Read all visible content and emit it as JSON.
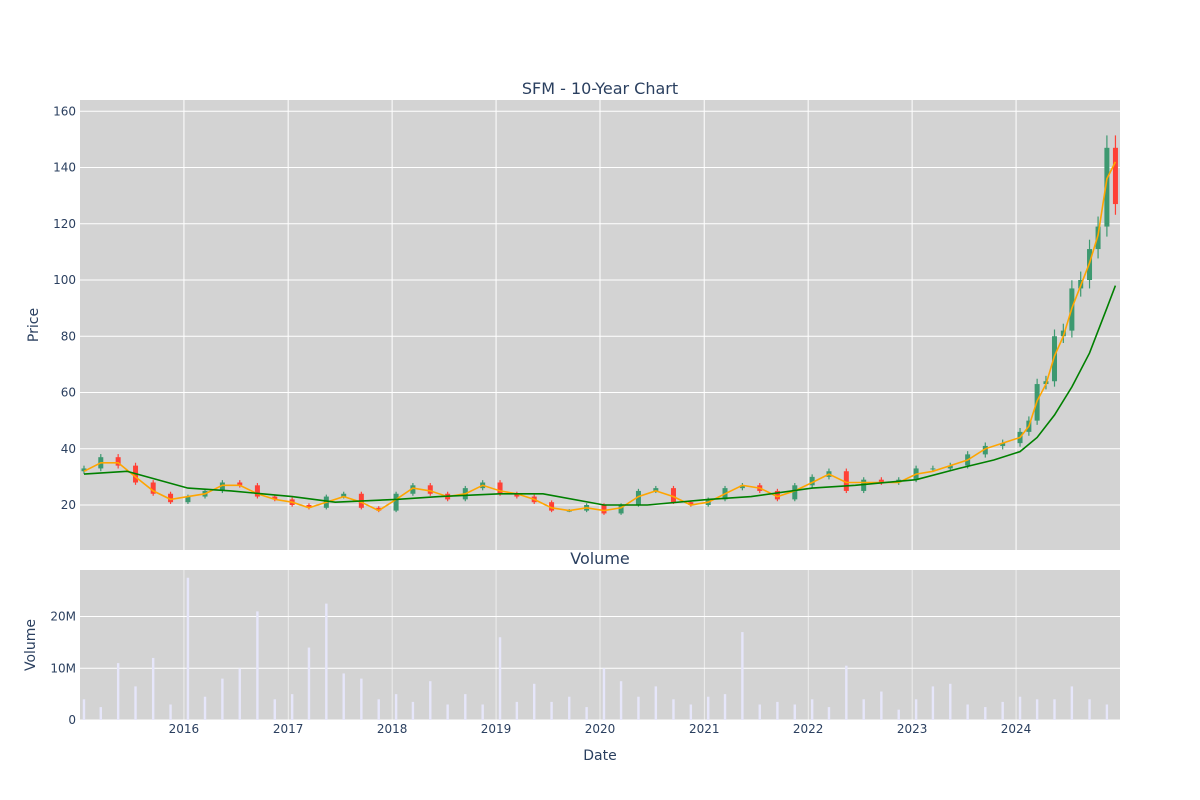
{
  "chart_data": [
    {
      "type": "candlestick",
      "title": "SFM - 10-Year Chart",
      "xlabel": "",
      "ylabel": "Price",
      "xlim": [
        "2015-01-01",
        "2024-12-31"
      ],
      "ylim": [
        4,
        164
      ],
      "y_ticks": [
        20,
        40,
        60,
        80,
        100,
        120,
        140,
        160
      ],
      "x_ticks": [
        "2016-01-01",
        "2017-01-01",
        "2018-01-01",
        "2019-01-01",
        "2020-01-01",
        "2021-01-01",
        "2022-01-01",
        "2023-01-01",
        "2024-01-01"
      ],
      "grid": true,
      "background": "#d3d3d3",
      "colors": {
        "up": "#3d9970",
        "down": "#ff4136",
        "short_ma": "#ffa500",
        "long_ma": "#008000"
      },
      "series": [
        {
          "kind": "ohlc",
          "x": [
            "2015-01",
            "2015-03",
            "2015-05",
            "2015-07",
            "2015-09",
            "2015-11",
            "2016-01",
            "2016-03",
            "2016-05",
            "2016-07",
            "2016-09",
            "2016-11",
            "2017-01",
            "2017-03",
            "2017-05",
            "2017-07",
            "2017-09",
            "2017-11",
            "2018-01",
            "2018-03",
            "2018-05",
            "2018-07",
            "2018-09",
            "2018-11",
            "2019-01",
            "2019-03",
            "2019-05",
            "2019-07",
            "2019-09",
            "2019-11",
            "2020-01",
            "2020-03",
            "2020-05",
            "2020-07",
            "2020-09",
            "2020-11",
            "2021-01",
            "2021-03",
            "2021-05",
            "2021-07",
            "2021-09",
            "2021-11",
            "2022-01",
            "2022-03",
            "2022-05",
            "2022-07",
            "2022-09",
            "2022-11",
            "2023-01",
            "2023-03",
            "2023-05",
            "2023-07",
            "2023-09",
            "2023-11",
            "2024-01",
            "2024-02",
            "2024-03",
            "2024-04",
            "2024-05",
            "2024-06",
            "2024-07",
            "2024-08",
            "2024-09",
            "2024-10",
            "2024-11",
            "2024-12"
          ],
          "close": [
            33,
            37,
            34,
            28,
            24,
            21,
            23,
            25,
            28,
            27,
            23,
            22,
            20,
            19,
            23,
            24,
            19,
            18,
            24,
            27,
            24,
            22,
            26,
            28,
            24,
            23,
            21,
            18,
            18,
            20,
            17,
            20,
            25,
            26,
            21,
            20,
            22,
            26,
            27,
            25,
            22,
            27,
            30,
            32,
            25,
            29,
            28,
            29,
            33,
            33,
            34,
            38,
            41,
            42,
            46,
            50,
            63,
            64,
            80,
            82,
            97,
            100,
            111,
            119,
            147,
            127
          ]
        },
        {
          "kind": "line",
          "x": [
            "2015-01",
            "2015-03",
            "2015-05",
            "2015-07",
            "2015-09",
            "2015-11",
            "2016-01",
            "2016-03",
            "2016-05",
            "2016-07",
            "2016-09",
            "2016-11",
            "2017-01",
            "2017-03",
            "2017-05",
            "2017-07",
            "2017-09",
            "2017-11",
            "2018-01",
            "2018-03",
            "2018-05",
            "2018-07",
            "2018-09",
            "2018-11",
            "2019-01",
            "2019-03",
            "2019-05",
            "2019-07",
            "2019-09",
            "2019-11",
            "2020-01",
            "2020-03",
            "2020-05",
            "2020-07",
            "2020-09",
            "2020-11",
            "2021-01",
            "2021-03",
            "2021-05",
            "2021-07",
            "2021-09",
            "2021-11",
            "2022-01",
            "2022-03",
            "2022-05",
            "2022-07",
            "2022-09",
            "2022-11",
            "2023-01",
            "2023-03",
            "2023-05",
            "2023-07",
            "2023-09",
            "2023-11",
            "2024-01",
            "2024-02",
            "2024-03",
            "2024-04",
            "2024-05",
            "2024-06",
            "2024-07",
            "2024-08",
            "2024-09",
            "2024-10",
            "2024-11",
            "2024-12"
          ],
          "values": [
            32,
            35,
            35,
            30,
            25,
            22,
            23,
            24,
            27,
            27,
            24,
            22,
            21,
            19,
            21,
            23,
            21,
            18,
            22,
            26,
            25,
            23,
            24,
            27,
            25,
            24,
            22,
            19,
            18,
            19,
            18,
            19,
            23,
            25,
            23,
            20,
            21,
            24,
            27,
            26,
            23,
            25,
            28,
            31,
            28,
            28,
            28,
            28,
            31,
            32,
            34,
            36,
            40,
            42,
            44,
            48,
            57,
            63,
            73,
            80,
            90,
            98,
            106,
            116,
            136,
            142
          ],
          "color_key": "short_ma"
        },
        {
          "kind": "line",
          "x": [
            "2015-01",
            "2015-06",
            "2016-01",
            "2016-06",
            "2017-01",
            "2017-06",
            "2018-01",
            "2018-06",
            "2019-01",
            "2019-06",
            "2020-01",
            "2020-06",
            "2021-01",
            "2021-06",
            "2022-01",
            "2022-06",
            "2023-01",
            "2023-06",
            "2023-10",
            "2024-01",
            "2024-03",
            "2024-05",
            "2024-07",
            "2024-09",
            "2024-11",
            "2024-12"
          ],
          "values": [
            31,
            32,
            26,
            25,
            23,
            21,
            22,
            23,
            24,
            24,
            20,
            20,
            22,
            23,
            26,
            27,
            29,
            33,
            36,
            39,
            44,
            52,
            62,
            74,
            90,
            98
          ],
          "color_key": "long_ma"
        }
      ]
    },
    {
      "type": "bar",
      "title": "Volume",
      "xlabel": "Date",
      "ylabel": "Volume",
      "ylim": [
        0,
        29000000
      ],
      "y_ticks": [
        0,
        10000000,
        20000000
      ],
      "y_tick_labels": [
        "0",
        "10M",
        "20M"
      ],
      "x_tick_labels": [
        "2016",
        "2017",
        "2018",
        "2019",
        "2020",
        "2021",
        "2022",
        "2023",
        "2024"
      ],
      "grid": true,
      "background": "#d3d3d3",
      "bar_color": "#e6e6fa",
      "x": [
        "2015-01",
        "2015-03",
        "2015-05",
        "2015-07",
        "2015-09",
        "2015-11",
        "2016-01",
        "2016-03",
        "2016-05",
        "2016-07",
        "2016-09",
        "2016-11",
        "2017-01",
        "2017-03",
        "2017-05",
        "2017-07",
        "2017-09",
        "2017-11",
        "2018-01",
        "2018-03",
        "2018-05",
        "2018-07",
        "2018-09",
        "2018-11",
        "2019-01",
        "2019-03",
        "2019-05",
        "2019-07",
        "2019-09",
        "2019-11",
        "2020-01",
        "2020-03",
        "2020-05",
        "2020-07",
        "2020-09",
        "2020-11",
        "2021-01",
        "2021-03",
        "2021-05",
        "2021-07",
        "2021-09",
        "2021-11",
        "2022-01",
        "2022-03",
        "2022-05",
        "2022-07",
        "2022-09",
        "2022-11",
        "2023-01",
        "2023-03",
        "2023-05",
        "2023-07",
        "2023-09",
        "2023-11",
        "2024-01",
        "2024-03",
        "2024-05",
        "2024-07",
        "2024-09",
        "2024-11"
      ],
      "values": [
        4000000,
        2500000,
        11000000,
        6500000,
        12000000,
        3000000,
        27500000,
        4500000,
        8000000,
        10000000,
        21000000,
        4000000,
        5000000,
        14000000,
        22500000,
        9000000,
        8000000,
        4000000,
        5000000,
        3500000,
        7500000,
        3000000,
        5000000,
        3000000,
        16000000,
        3500000,
        7000000,
        3500000,
        4500000,
        2500000,
        10000000,
        7500000,
        4500000,
        6500000,
        4000000,
        3000000,
        4500000,
        5000000,
        17000000,
        3000000,
        3500000,
        3000000,
        4000000,
        2500000,
        10500000,
        4000000,
        5500000,
        2000000,
        4000000,
        6500000,
        7000000,
        3000000,
        2500000,
        3500000,
        4500000,
        4000000,
        4000000,
        6500000,
        4000000,
        3000000
      ]
    }
  ]
}
